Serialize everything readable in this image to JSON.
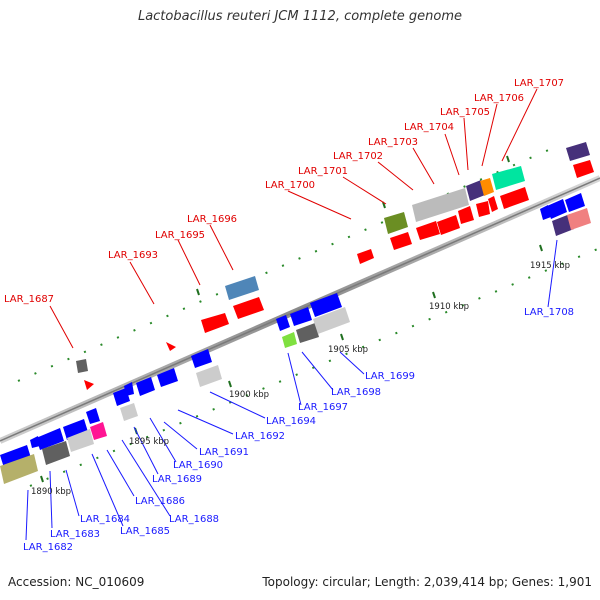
{
  "title": "Lactobacillus reuteri JCM 1112, complete genome",
  "footer": {
    "accession": "Accession: NC_010609",
    "topology": "Topology: circular; Length: 2,039,414 bp; Genes: 1,901"
  },
  "kbp_ticks": [
    "1890 kbp",
    "1895 kbp",
    "1900 kbp",
    "1905 kbp",
    "1910 kbp",
    "1915 kbp"
  ],
  "genes_top": [
    "LAR_1687",
    "LAR_1693",
    "LAR_1695",
    "LAR_1696",
    "LAR_1700",
    "LAR_1701",
    "LAR_1702",
    "LAR_1703",
    "LAR_1704",
    "LAR_1705",
    "LAR_1706",
    "LAR_1707"
  ],
  "genes_bottom": [
    "LAR_1682",
    "LAR_1683",
    "LAR_1684",
    "LAR_1685",
    "LAR_1686",
    "LAR_1688",
    "LAR_1689",
    "LAR_1690",
    "LAR_1691",
    "LAR_1692",
    "LAR_1694",
    "LAR_1697",
    "LAR_1698",
    "LAR_1699",
    "LAR_1708"
  ],
  "colors": {
    "forward_strand": "#ff0000",
    "reverse_strand": "#0000ff",
    "top_label": "#e00000",
    "bottom_label": "#1a1aff",
    "backbone": "#888888",
    "tick": "#2a8a2a"
  }
}
